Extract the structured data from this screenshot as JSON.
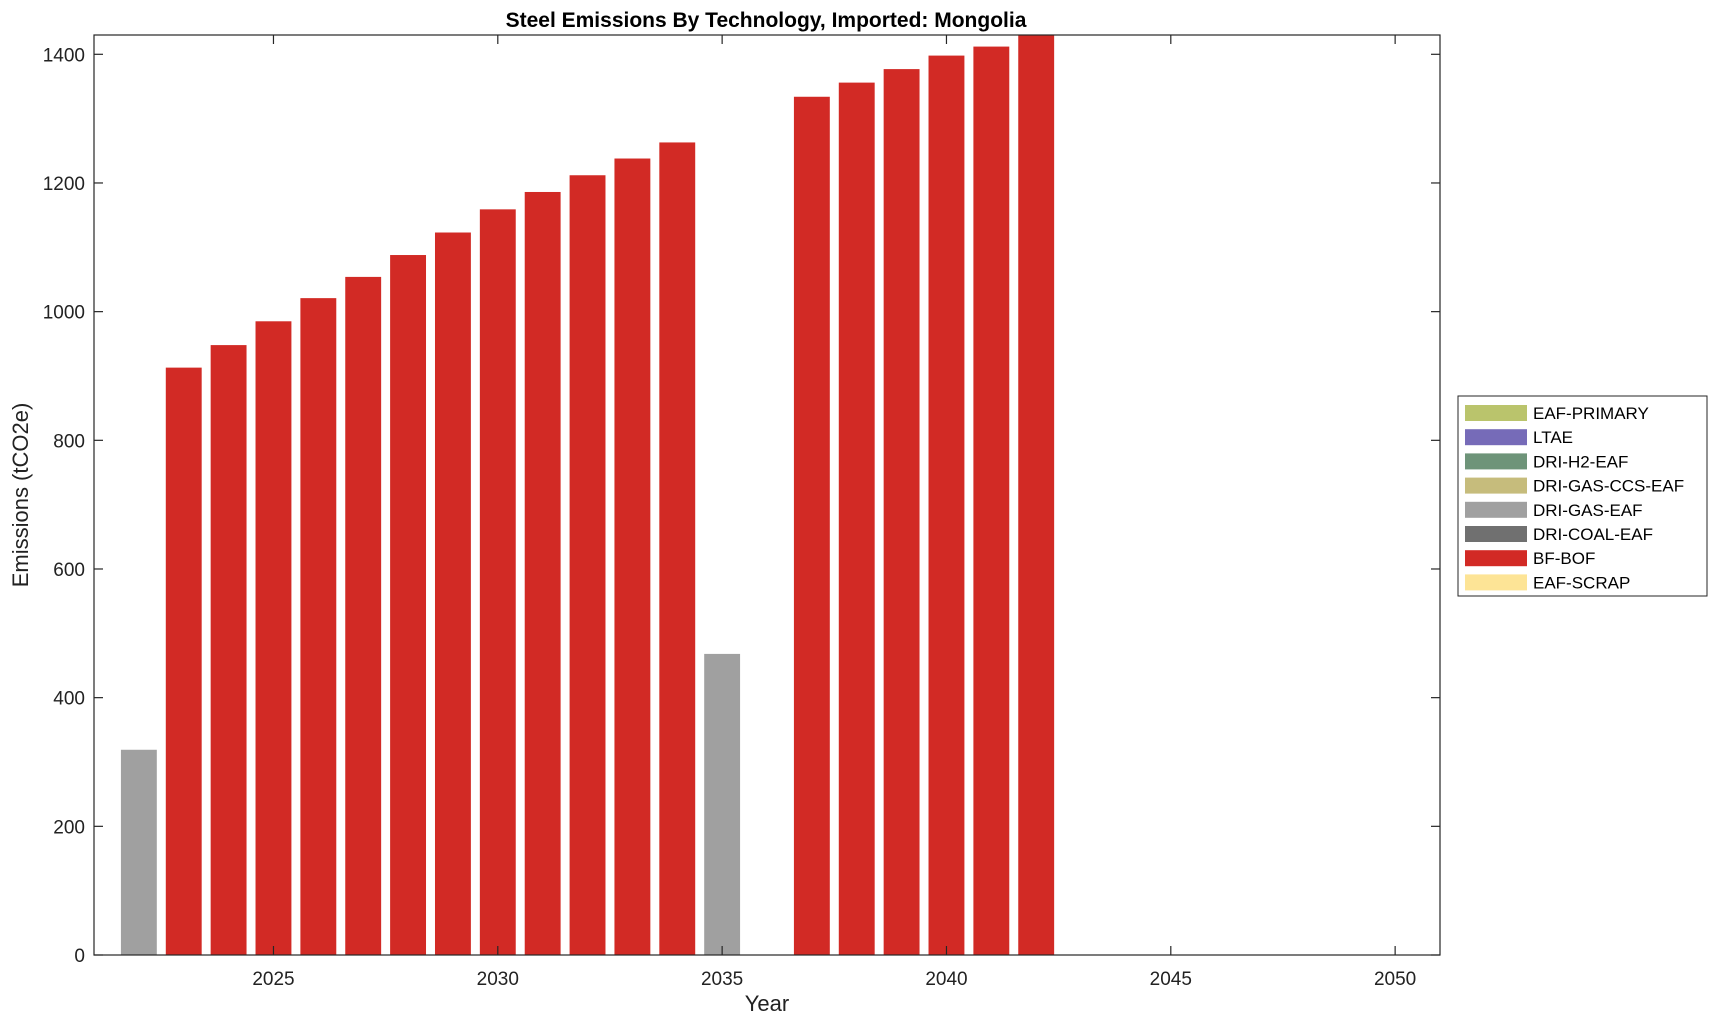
{
  "chart_data": {
    "type": "bar",
    "stacked": true,
    "title": "Steel Emissions By Technology, Imported: Mongolia",
    "xlabel": "Year",
    "ylabel": "Emissions (tCO2e)",
    "xlim": [
      2021,
      2051
    ],
    "ylim": [
      0,
      1430
    ],
    "xticks": [
      2025,
      2030,
      2035,
      2040,
      2045,
      2050
    ],
    "yticks": [
      0,
      200,
      400,
      600,
      800,
      1000,
      1200,
      1400
    ],
    "grid": false,
    "legend_position": "outside-right",
    "x": [
      2022,
      2023,
      2024,
      2025,
      2026,
      2027,
      2028,
      2029,
      2030,
      2031,
      2032,
      2033,
      2034,
      2035,
      2036,
      2037,
      2038,
      2039,
      2040,
      2041,
      2042,
      2043,
      2044,
      2045,
      2046,
      2047,
      2048,
      2049,
      2050
    ],
    "series": [
      {
        "name": "EAF-SCRAP",
        "color": "#FDE496",
        "values": [
          0,
          0,
          0,
          0,
          0,
          0,
          0,
          0,
          0,
          0,
          0,
          0,
          0,
          0,
          0,
          0,
          0,
          0,
          0,
          0,
          0,
          0,
          0,
          0,
          0,
          0,
          0,
          0,
          0
        ]
      },
      {
        "name": "BF-BOF",
        "color": "#D22A25",
        "values": [
          0,
          913,
          948,
          985,
          1021,
          1054,
          1088,
          1123,
          1159,
          1186,
          1212,
          1238,
          1263,
          0,
          0,
          1334,
          1356,
          1377,
          1398,
          1412,
          1430,
          0,
          0,
          0,
          0,
          0,
          0,
          0,
          0
        ]
      },
      {
        "name": "DRI-COAL-EAF",
        "color": "#707070",
        "values": [
          0,
          0,
          0,
          0,
          0,
          0,
          0,
          0,
          0,
          0,
          0,
          0,
          0,
          0,
          0,
          0,
          0,
          0,
          0,
          0,
          0,
          0,
          0,
          0,
          0,
          0,
          0,
          0,
          0
        ]
      },
      {
        "name": "DRI-GAS-EAF",
        "color": "#A0A0A0",
        "values": [
          319,
          0,
          0,
          0,
          0,
          0,
          0,
          0,
          0,
          0,
          0,
          0,
          0,
          468,
          0,
          0,
          0,
          0,
          0,
          0,
          0,
          0,
          0,
          0,
          0,
          0,
          0,
          0,
          0
        ]
      },
      {
        "name": "DRI-GAS-CCS-EAF",
        "color": "#C6BC7C",
        "values": [
          0,
          0,
          0,
          0,
          0,
          0,
          0,
          0,
          0,
          0,
          0,
          0,
          0,
          0,
          0,
          0,
          0,
          0,
          0,
          0,
          0,
          0,
          0,
          0,
          0,
          0,
          0,
          0,
          0
        ]
      },
      {
        "name": "DRI-H2-EAF",
        "color": "#6E9479",
        "values": [
          0,
          0,
          0,
          0,
          0,
          0,
          0,
          0,
          0,
          0,
          0,
          0,
          0,
          0,
          0,
          0,
          0,
          0,
          0,
          0,
          0,
          0,
          0,
          0,
          0,
          0,
          0,
          0,
          0
        ]
      },
      {
        "name": "LTAE",
        "color": "#766BB8",
        "values": [
          0,
          0,
          0,
          0,
          0,
          0,
          0,
          0,
          0,
          0,
          0,
          0,
          0,
          0,
          0,
          0,
          0,
          0,
          0,
          0,
          0,
          0,
          0,
          0,
          0,
          0,
          0,
          0,
          0
        ]
      },
      {
        "name": "EAF-PRIMARY",
        "color": "#BAC46C",
        "values": [
          0,
          0,
          0,
          0,
          0,
          0,
          0,
          0,
          0,
          0,
          0,
          0,
          0,
          0,
          0,
          0,
          0,
          0,
          0,
          0,
          0,
          0,
          0,
          0,
          0,
          0,
          0,
          0,
          0
        ]
      }
    ],
    "legend": [
      "EAF-PRIMARY",
      "LTAE",
      "DRI-H2-EAF",
      "DRI-GAS-CCS-EAF",
      "DRI-GAS-EAF",
      "DRI-COAL-EAF",
      "BF-BOF",
      "EAF-SCRAP"
    ]
  }
}
